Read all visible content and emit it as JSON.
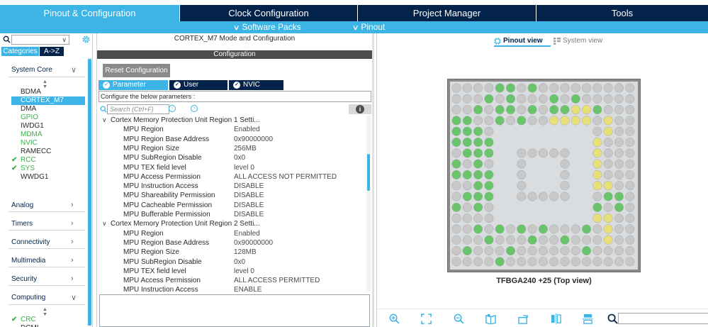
{
  "top_tabs": [
    {
      "label": "Pinout & Configuration",
      "active": true
    },
    {
      "label": "Clock Configuration",
      "active": false
    },
    {
      "label": "Project Manager",
      "active": false
    },
    {
      "label": "Tools",
      "active": false
    }
  ],
  "subbar": {
    "software_packs": "Software Packs",
    "pinout": "Pinout"
  },
  "sidebar": {
    "search_value": "",
    "tabs": {
      "categories": "Categories",
      "az": "A->Z"
    },
    "groups": {
      "system_core": "System Core",
      "analog": "Analog",
      "timers": "Timers",
      "connectivity": "Connectivity",
      "multimedia": "Multimedia",
      "security": "Security",
      "computing": "Computing"
    },
    "system_core_items": [
      {
        "label": "BDMA",
        "checked": false,
        "green": false
      },
      {
        "label": "CORTEX_M7",
        "checked": false,
        "green": false,
        "selected": true
      },
      {
        "label": "DMA",
        "checked": false,
        "green": false
      },
      {
        "label": "GPIO",
        "checked": false,
        "green": true
      },
      {
        "label": "IWDG1",
        "checked": false,
        "green": false
      },
      {
        "label": "MDMA",
        "checked": false,
        "green": true
      },
      {
        "label": "NVIC",
        "checked": false,
        "green": true
      },
      {
        "label": "RAMECC",
        "checked": false,
        "green": false
      },
      {
        "label": "RCC",
        "checked": true,
        "green": true
      },
      {
        "label": "SYS",
        "checked": true,
        "green": true
      },
      {
        "label": "WWDG1",
        "checked": false,
        "green": false
      }
    ],
    "computing_items": [
      {
        "label": "CRC",
        "checked": true,
        "green": true
      },
      {
        "label": "DCMI",
        "checked": false,
        "green": false
      }
    ]
  },
  "middle": {
    "title": "CORTEX_M7 Mode and Configuration",
    "config_header": "Configuration",
    "reset_button": "Reset Configuration",
    "settings_tabs": [
      {
        "label": "Parameter Settings",
        "active": true
      },
      {
        "label": "User Constants",
        "active": false
      },
      {
        "label": "NVIC Settings",
        "active": false
      }
    ],
    "configure_text": "Configure the below parameters :",
    "search_placeholder": "Search (Ctrl+F)",
    "regions": [
      {
        "title": "Cortex Memory Protection Unit Region 1 Setti...",
        "params": [
          {
            "key": "MPU Region",
            "value": "Enabled"
          },
          {
            "key": "MPU Region Base Address",
            "value": "0x90000000"
          },
          {
            "key": "MPU Region Size",
            "value": "256MB"
          },
          {
            "key": "MPU SubRegion Disable",
            "value": "0x0"
          },
          {
            "key": "MPU TEX field level",
            "value": "level 0"
          },
          {
            "key": "MPU Access Permission",
            "value": "ALL ACCESS NOT PERMITTED"
          },
          {
            "key": "MPU Instruction Access",
            "value": "DISABLE"
          },
          {
            "key": "MPU Shareability Permission",
            "value": "DISABLE"
          },
          {
            "key": "MPU Cacheable Permission",
            "value": "DISABLE"
          },
          {
            "key": "MPU Bufferable  Permission",
            "value": "DISABLE"
          }
        ]
      },
      {
        "title": "Cortex Memory Protection Unit Region 2 Setti...",
        "params": [
          {
            "key": "MPU Region",
            "value": "Enabled"
          },
          {
            "key": "MPU Region Base Address",
            "value": "0x90000000"
          },
          {
            "key": "MPU Region Size",
            "value": "128MB"
          },
          {
            "key": "MPU SubRegion Disable",
            "value": "0x0"
          },
          {
            "key": "MPU TEX field level",
            "value": "level 0"
          },
          {
            "key": "MPU Access Permission",
            "value": "ALL ACCESS PERMITTED"
          },
          {
            "key": "MPU Instruction Access",
            "value": "ENABLE"
          }
        ]
      }
    ]
  },
  "right": {
    "pinout_view": "Pinout view",
    "system_view": "System view",
    "chip_label": "TFBGA240 +25 (Top view)",
    "search_value": "",
    "colors": {
      "pin_default": "#c8c8c8",
      "pin_green": "#6ac46b",
      "pin_yellow": "#e6df7a",
      "pin_power": "#f1e7a8"
    }
  }
}
